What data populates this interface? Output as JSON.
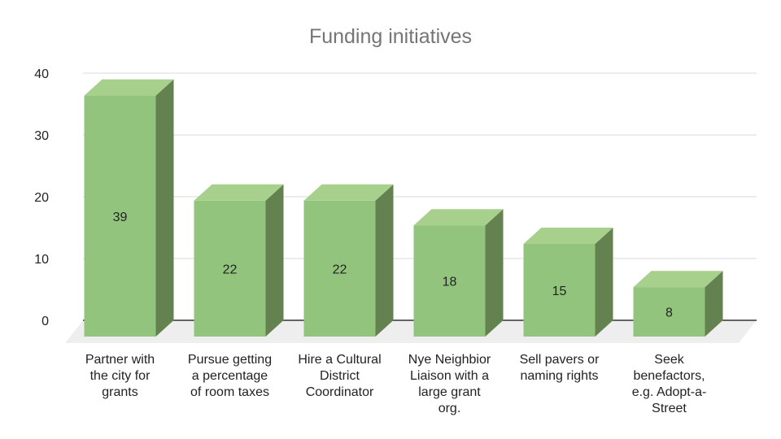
{
  "chart_data": {
    "type": "bar",
    "title": "Funding initiatives",
    "xlabel": "",
    "ylabel": "",
    "ylim": [
      0,
      40
    ],
    "yticks": [
      "0",
      "10",
      "20",
      "30",
      "40"
    ],
    "grid": true,
    "legend": "none",
    "style": "3d",
    "colors": {
      "bar_front": "#93c47d",
      "bar_top": "#a8d08d",
      "bar_side": "#648150",
      "grid": "#d9d9d9",
      "floor": "#eeeeee",
      "axis": "#333333"
    },
    "categories": [
      "Partner with the city for grants",
      "Pursue getting a percentage of room taxes",
      "Hire a Cultural District Coordinator",
      "Nye Neighbior Liaison with a large grant org.",
      "Sell pavers or naming rights",
      "Seek benefactors, e.g. Adopt-a-Street"
    ],
    "category_lines": [
      [
        "Partner with",
        "the city for",
        "grants"
      ],
      [
        "Pursue getting",
        "a percentage",
        "of room taxes"
      ],
      [
        "Hire a Cultural",
        "District",
        "Coordinator"
      ],
      [
        "Nye Neighbior",
        "Liaison with a",
        "large grant",
        "org."
      ],
      [
        "Sell pavers or",
        "naming rights"
      ],
      [
        "Seek",
        "benefactors,",
        "e.g. Adopt-a-",
        "Street"
      ]
    ],
    "values": [
      39,
      22,
      22,
      18,
      15,
      8
    ],
    "value_labels": [
      "39",
      "22",
      "22",
      "18",
      "15",
      "8"
    ]
  }
}
